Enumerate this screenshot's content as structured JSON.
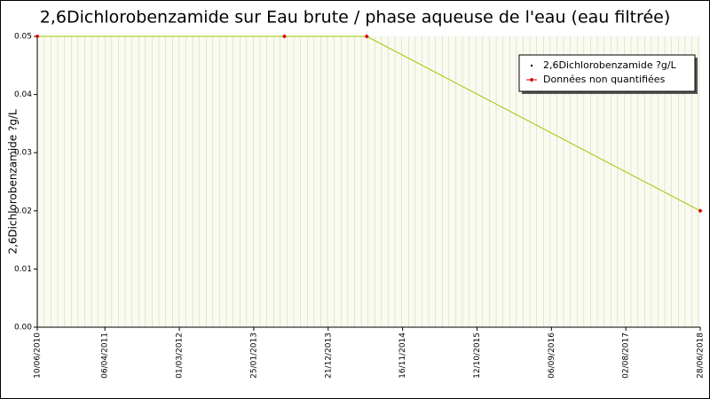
{
  "chart_data": {
    "type": "line",
    "title": "2,6Dichlorobenzamide sur Eau brute / phase aqueuse de l'eau (eau filtrée)",
    "y_label": "2,6Dichlorobenzamide ?g/L",
    "x": [
      "2010-06-10",
      "2013-06-10",
      "2014-06-10",
      "2018-06-28"
    ],
    "series": [
      {
        "name": "2,6Dichlorobenzamide ?g/L",
        "color": "#99cc00",
        "values": [
          0.05,
          0.05,
          0.05,
          0.02
        ]
      },
      {
        "name": "Données non quantifiées",
        "color": "#dd0000",
        "values": [
          0.05,
          0.05,
          0.05,
          0.02
        ]
      }
    ],
    "xlim": [
      "2010-06-10",
      "2018-06-28"
    ],
    "xticks": [
      {
        "value": "2010-06-10",
        "label": "10/06/2010"
      },
      {
        "value": "2011-04-06",
        "label": "06/04/2011"
      },
      {
        "value": "2012-03-01",
        "label": "01/03/2012"
      },
      {
        "value": "2013-01-25",
        "label": "25/01/2013"
      },
      {
        "value": "2013-12-21",
        "label": "21/12/2013"
      },
      {
        "value": "2014-11-16",
        "label": "16/11/2014"
      },
      {
        "value": "2015-10-12",
        "label": "12/10/2015"
      },
      {
        "value": "2016-09-06",
        "label": "06/09/2016"
      },
      {
        "value": "2017-08-02",
        "label": "02/08/2017"
      },
      {
        "value": "2018-06-28",
        "label": "28/06/2018"
      }
    ],
    "ylim": [
      0,
      0.05
    ],
    "yticks": [
      {
        "value": 0,
        "label": "0.00"
      },
      0.01,
      0.02,
      0.03,
      0.04,
      0.05
    ],
    "legend": "top-right"
  }
}
